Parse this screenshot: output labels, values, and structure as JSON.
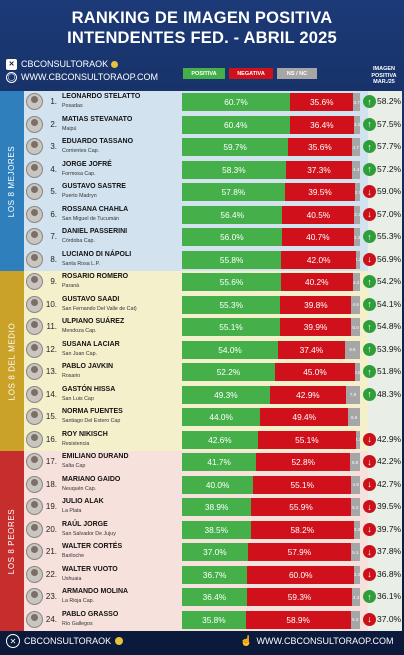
{
  "header": {
    "title_line1": "RANKING DE IMAGEN POSITIVA",
    "title_line2": "INTENDENTES FED. - ABRIL 2025",
    "handle": "CBCONSULTORAOK",
    "website": "WWW.CBCONSULTORAOP.COM"
  },
  "legend": {
    "positive": "POSITIVA",
    "negative": "NEGATIVA",
    "ns": "NS / NC",
    "mar_line1": "IMAGEN",
    "mar_line2": "POSITIVA",
    "mar_line3": "MAR./25"
  },
  "sections": {
    "best": "LOS 8 MEJORES",
    "middle": "LOS 8 DEL MEDIO",
    "worst": "LOS 8 PEORES"
  },
  "colors": {
    "positive": "#45b04a",
    "negative": "#d0111c",
    "ns": "#a6a6a6",
    "best_bg": "#d2e3ef",
    "middle_bg": "#f4f0cc",
    "worst_bg": "#f7e1dc",
    "best_band": "#2f7fbc",
    "middle_band": "#c9a227",
    "worst_band": "#c62d2d"
  },
  "footer": {
    "handle": "CBCONSULTORAOK",
    "website": "WWW.CBCONSULTORAOP.COM"
  },
  "chart_data": {
    "type": "bar",
    "stacked": true,
    "orientation": "horizontal",
    "title": "RANKING DE IMAGEN POSITIVA INTENDENTES FED. - ABRIL 2025",
    "series_names": [
      "POSITIVA",
      "NEGATIVA",
      "NS / NC"
    ],
    "rows": [
      {
        "rank": 1,
        "name": "LEONARDO STELATTO",
        "city": "Posadas",
        "positive": 60.7,
        "negative": 35.6,
        "ns": 3.7,
        "ns_label": "3.7",
        "mar": 58.2,
        "trend": "up",
        "section": "best"
      },
      {
        "rank": 2,
        "name": "MATIAS STEVANATO",
        "city": "Maipú",
        "positive": 60.4,
        "negative": 36.4,
        "ns": 3.2,
        "ns_label": "3.2",
        "mar": 57.5,
        "trend": "up",
        "section": "best"
      },
      {
        "rank": 3,
        "name": "EDUARDO TASSANO",
        "city": "Corrientes Cap.",
        "positive": 59.7,
        "negative": 35.6,
        "ns": 4.7,
        "ns_label": "4.7",
        "mar": 57.7,
        "trend": "up",
        "section": "best"
      },
      {
        "rank": 4,
        "name": "JORGE JOFRÉ",
        "city": "Formosa Cap.",
        "positive": 58.3,
        "negative": 37.3,
        "ns": 4.4,
        "ns_label": "4.4",
        "mar": 57.2,
        "trend": "up",
        "section": "best"
      },
      {
        "rank": 5,
        "name": "GUSTAVO SASTRE",
        "city": "Puerto Madryn",
        "positive": 57.8,
        "negative": 39.5,
        "ns": 2.7,
        "ns_label": "2.7",
        "mar": 59.0,
        "trend": "down",
        "section": "best"
      },
      {
        "rank": 6,
        "name": "ROSSANA CHAHLA",
        "city": "San Miguel de Tucumán",
        "positive": 56.4,
        "negative": 40.5,
        "ns": 3.1,
        "ns_label": "3.1",
        "mar": 57.0,
        "trend": "down",
        "section": "best"
      },
      {
        "rank": 7,
        "name": "DANIEL PASSERINI",
        "city": "Córdoba Cap.",
        "positive": 56.0,
        "negative": 40.7,
        "ns": 3.3,
        "ns_label": "3.3",
        "mar": 55.3,
        "trend": "up",
        "section": "best"
      },
      {
        "rank": 8,
        "name": "LUCIANO DI NÁPOLI",
        "city": "Santa Rosa L.P.",
        "positive": 55.8,
        "negative": 42.0,
        "ns": 2.2,
        "ns_label": "2.2",
        "mar": 56.9,
        "trend": "down",
        "section": "best"
      },
      {
        "rank": 9,
        "name": "ROSARIO ROMERO",
        "city": "Paraná",
        "positive": 55.6,
        "negative": 40.2,
        "ns": 4.2,
        "ns_label": "4.2",
        "mar": 54.2,
        "trend": "up",
        "section": "middle"
      },
      {
        "rank": 10,
        "name": "GUSTAVO SAADI",
        "city": "San Fernando Del Valle de Cat)",
        "positive": 55.3,
        "negative": 39.8,
        "ns": 4.9,
        "ns_label": "4.9",
        "mar": 54.1,
        "trend": "up",
        "section": "middle"
      },
      {
        "rank": 11,
        "name": "ULPIANO SUÁREZ",
        "city": "Mendoza Cap.",
        "positive": 55.1,
        "negative": 39.9,
        "ns": 5.0,
        "ns_label": "5.0",
        "mar": 54.8,
        "trend": "up",
        "section": "middle"
      },
      {
        "rank": 12,
        "name": "SUSANA LACIAR",
        "city": "San Juan Cap.",
        "positive": 54.0,
        "negative": 37.4,
        "ns": 8.6,
        "ns_label": "8.6",
        "mar": 53.9,
        "trend": "up",
        "section": "middle"
      },
      {
        "rank": 13,
        "name": "PABLO JAVKIN",
        "city": "Rosario",
        "positive": 52.2,
        "negative": 45.0,
        "ns": 2.8,
        "ns_label": "2.8",
        "mar": 51.8,
        "trend": "up",
        "section": "middle"
      },
      {
        "rank": 14,
        "name": "GASTÓN HISSA",
        "city": "San Luis Cap",
        "positive": 49.3,
        "negative": 42.9,
        "ns": 7.8,
        "ns_label": "7.8",
        "mar": 48.3,
        "trend": "up",
        "section": "middle"
      },
      {
        "rank": 15,
        "name": "NORMA FUENTES",
        "city": "Santiago Del Estero Cap",
        "positive": 44.0,
        "negative": 49.4,
        "ns": 6.6,
        "ns_label": "6.6",
        "mar": null,
        "trend": null,
        "section": "middle"
      },
      {
        "rank": 16,
        "name": "ROY NIKISCH",
        "city": "Resistencia",
        "positive": 42.6,
        "negative": 55.1,
        "ns": 2.3,
        "ns_label": "2.3",
        "mar": 42.9,
        "trend": "down",
        "section": "middle"
      },
      {
        "rank": 17,
        "name": "EMILIANO DURAND",
        "city": "Salta Cap",
        "positive": 41.7,
        "negative": 52.8,
        "ns": 5.5,
        "ns_label": "5.5",
        "mar": 42.2,
        "trend": "down",
        "section": "worst"
      },
      {
        "rank": 18,
        "name": "MARIANO GAIDO",
        "city": "Neuquén Cap.",
        "positive": 40.0,
        "negative": 55.1,
        "ns": 4.9,
        "ns_label": "4.9",
        "mar": 42.7,
        "trend": "down",
        "section": "worst"
      },
      {
        "rank": 19,
        "name": "JULIO ALAK",
        "city": "La Plata",
        "positive": 38.9,
        "negative": 55.9,
        "ns": 5.2,
        "ns_label": "5.2",
        "mar": 39.5,
        "trend": "down",
        "section": "worst"
      },
      {
        "rank": 20,
        "name": "RAÚL JORGE",
        "city": "San Salvador De Jujuy",
        "positive": 38.5,
        "negative": 58.2,
        "ns": 3.3,
        "ns_label": "3.3",
        "mar": 39.7,
        "trend": "down",
        "section": "worst"
      },
      {
        "rank": 21,
        "name": "WALTER CORTÉS",
        "city": "Bariloche",
        "positive": 37.0,
        "negative": 57.9,
        "ns": 5.1,
        "ns_label": "5.1",
        "mar": 37.8,
        "trend": "down",
        "section": "worst"
      },
      {
        "rank": 22,
        "name": "WALTER VUOTO",
        "city": "Ushuaia",
        "positive": 36.7,
        "negative": 60.0,
        "ns": 3.3,
        "ns_label": "3.3",
        "mar": 36.8,
        "trend": "down",
        "section": "worst"
      },
      {
        "rank": 23,
        "name": "ARMANDO MOLINA",
        "city": "La Rioja Cap.",
        "positive": 36.4,
        "negative": 59.3,
        "ns": 4.3,
        "ns_label": "4.3",
        "mar": 36.1,
        "trend": "up",
        "section": "worst"
      },
      {
        "rank": 24,
        "name": "PABLO GRASSO",
        "city": "Río Gallegos",
        "positive": 35.8,
        "negative": 58.9,
        "ns": 5.3,
        "ns_label": "5.3",
        "mar": 37.0,
        "trend": "down",
        "section": "worst"
      }
    ]
  }
}
